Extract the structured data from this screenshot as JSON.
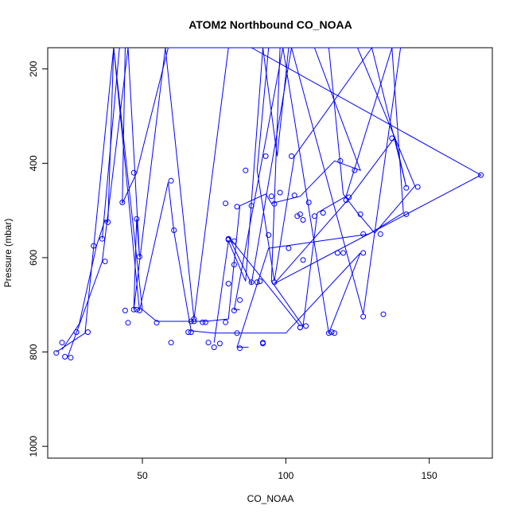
{
  "chart_data": {
    "type": "line",
    "title": "ATOM2 Northbound CO_NOAA",
    "xlabel": "CO_NOAA",
    "ylabel": "Pressure (mbar)",
    "xlim": [
      17,
      172
    ],
    "ylim": [
      1025,
      155
    ],
    "y_reversed": true,
    "x_ticks": [
      50,
      100,
      150
    ],
    "y_ticks": [
      200,
      400,
      600,
      800,
      1000
    ],
    "grid": false,
    "line_color": "#0000ff",
    "series": [
      {
        "x": [
          36,
          42,
          44,
          43,
          48,
          59,
          71,
          88,
          168,
          96,
          122,
          138,
          142,
          130,
          103,
          96,
          90,
          94,
          105,
          124,
          140,
          127,
          102,
          88,
          80,
          105
        ],
        "y": [
          560,
          155,
          155,
          485,
          420,
          155,
          155,
          155,
          425,
          655,
          475,
          345,
          450,
          155,
          385,
          650,
          415,
          155,
          155,
          155,
          155,
          720,
          155,
          655,
          555,
          745
        ]
      },
      {
        "x": [
          22,
          28,
          34,
          37,
          38,
          40,
          49,
          49,
          59,
          61,
          67,
          75,
          85,
          100,
          126,
          115,
          99,
          82,
          84
        ],
        "y": [
          795,
          740,
          575,
          520,
          525,
          155,
          712,
          712,
          440,
          545,
          755,
          760,
          760,
          760,
          590,
          760,
          155,
          710,
          710
        ]
      },
      {
        "x": [
          24,
          36,
          45,
          49,
          48,
          47,
          58,
          68,
          80,
          90,
          92,
          97,
          101,
          108,
          113,
          115,
          120,
          125,
          131,
          145,
          125,
          115,
          110,
          103,
          98,
          95,
          106,
          111,
          121,
          137,
          141,
          129,
          94,
          83,
          87
        ],
        "y": [
          810,
          608,
          155,
          598,
          518,
          710,
          155,
          730,
          155,
          155,
          155,
          385,
          155,
          155,
          155,
          155,
          465,
          505,
          548,
          448,
          155,
          155,
          155,
          155,
          155,
          650,
          745,
          505,
          470,
          155,
          505,
          550,
          580,
          790,
          790
        ]
      },
      {
        "x": [
          20,
          30,
          40,
          50,
          55,
          65,
          72,
          80,
          84,
          93,
          95,
          105,
          117,
          126,
          110,
          100,
          92,
          86,
          80,
          75
        ],
        "y": [
          800,
          760,
          155,
          710,
          735,
          735,
          735,
          730,
          490,
          465,
          485,
          470,
          395,
          415,
          155,
          155,
          155,
          650,
          565,
          780
        ]
      }
    ],
    "markers": {
      "x": [
        36,
        37,
        33,
        38,
        43,
        47,
        60,
        48,
        49,
        49,
        45,
        48,
        44,
        47,
        22,
        23,
        20,
        25,
        27,
        31,
        60,
        61,
        67,
        68,
        72,
        68,
        67,
        55,
        66,
        73,
        75,
        77,
        71,
        79,
        80,
        80,
        82,
        82,
        84,
        83,
        82,
        80,
        79,
        88,
        88,
        86,
        90,
        91,
        93,
        95,
        96,
        96,
        94,
        92,
        98,
        101,
        102,
        103,
        104,
        105,
        106,
        106,
        107,
        108,
        110,
        113,
        115,
        117,
        118,
        119,
        120,
        121,
        122,
        124,
        126,
        127,
        127,
        127,
        133,
        134,
        137,
        142,
        142,
        146,
        168,
        116,
        105,
        105,
        92,
        84,
        83
      ],
      "y": [
        560,
        608,
        575,
        525,
        483,
        420,
        437,
        518,
        598,
        712,
        738,
        710,
        712,
        710,
        780,
        810,
        802,
        812,
        758,
        758,
        780,
        542,
        758,
        730,
        737,
        735,
        735,
        738,
        758,
        780,
        790,
        782,
        737,
        737,
        560,
        562,
        565,
        615,
        690,
        760,
        712,
        655,
        485,
        652,
        490,
        415,
        652,
        650,
        385,
        470,
        486,
        652,
        552,
        780,
        462,
        580,
        385,
        468,
        512,
        508,
        520,
        605,
        745,
        483,
        512,
        505,
        760,
        760,
        590,
        395,
        590,
        478,
        472,
        415,
        508,
        590,
        550,
        725,
        550,
        720,
        347,
        452,
        508,
        450,
        425,
        758,
        748,
        748,
        782,
        792,
        492
      ]
    }
  }
}
